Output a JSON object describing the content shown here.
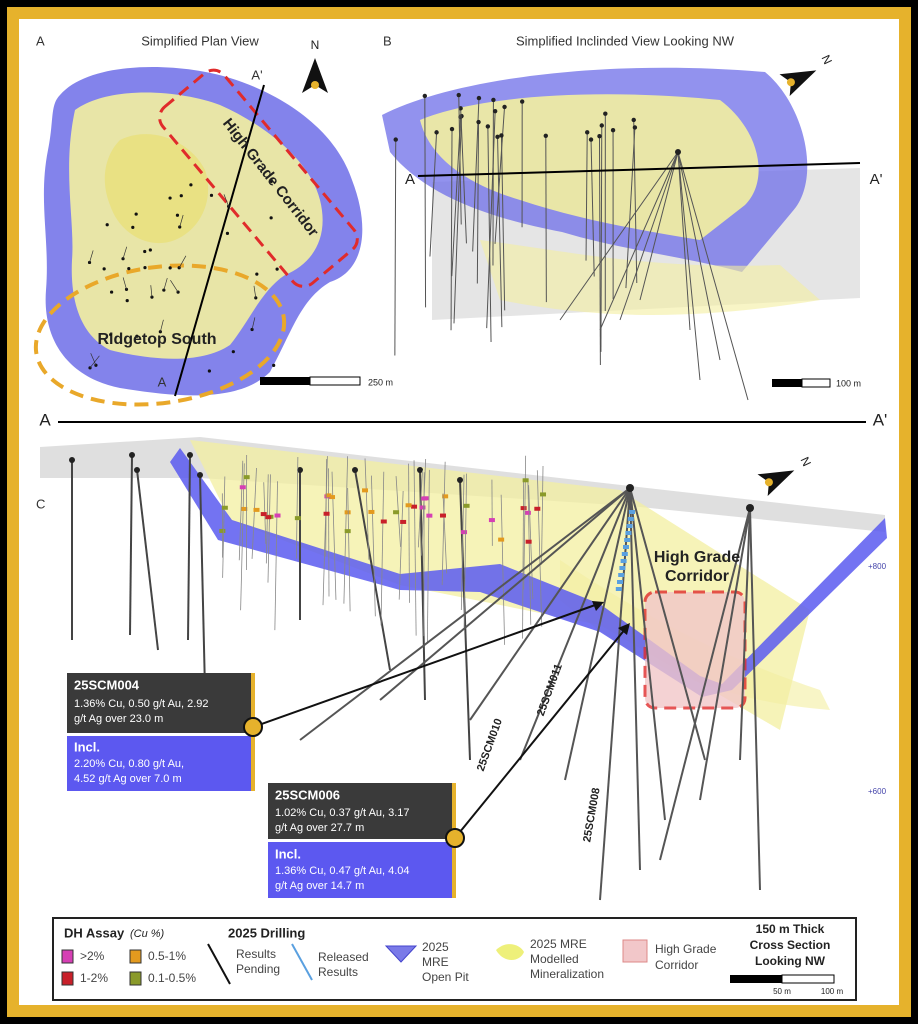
{
  "panel_a": {
    "label": "A",
    "title": "Simplified Plan View",
    "north": "N",
    "section_end": "A'",
    "section_start": "A",
    "corridor": "High Grade Corridor",
    "zone": "Ridgetop South",
    "scale": "250 m"
  },
  "panel_b": {
    "label": "B",
    "title": "Simplified Inclinded View Looking NW",
    "north": "N",
    "section_start": "A",
    "section_end": "A'",
    "scale": "100 m"
  },
  "section_line": {
    "start": "A",
    "end": "A'"
  },
  "panel_c": {
    "label": "C",
    "north": "N",
    "corridor": [
      "High Grade",
      "Corridor"
    ],
    "elevations": [
      "+800",
      "+600"
    ],
    "holes": [
      "25SCM010",
      "25SCM011",
      "25SCM008"
    ],
    "callouts": [
      {
        "hole": "25SCM004",
        "result": [
          "1.36% Cu, 0.50 g/t Au, 2.92",
          "g/t Ag over 23.0 m"
        ],
        "incl_label": "Incl.",
        "incl": [
          "2.20% Cu, 0.80 g/t Au,",
          "4.52 g/t Ag over 7.0 m"
        ]
      },
      {
        "hole": "25SCM006",
        "result": [
          "1.02% Cu, 0.37 g/t Au, 3.17",
          "g/t Ag over 27.7 m"
        ],
        "incl_label": "Incl.",
        "incl": [
          "1.36% Cu, 0.47 g/t Au, 4.04",
          "g/t Ag over 14.7 m"
        ]
      }
    ]
  },
  "legend": {
    "assay_title": "DH Assay",
    "assay_unit": "(Cu %)",
    "assay_classes": [
      {
        "label": ">2%",
        "color": "#d63fb4"
      },
      {
        "label": "0.5-1%",
        "color": "#e39a1e"
      },
      {
        "label": "1-2%",
        "color": "#c8202a"
      },
      {
        "label": "0.1-0.5%",
        "color": "#8a9a2a"
      }
    ],
    "drilling_title": "2025 Drilling",
    "pending": [
      "Results",
      "Pending"
    ],
    "released": [
      "Released",
      "Results"
    ],
    "pit": [
      "2025",
      "MRE",
      "Open Pit"
    ],
    "mineralization": [
      "2025 MRE",
      "Modelled",
      "Mineralization"
    ],
    "corridor": [
      "High Grade",
      "Corridor"
    ],
    "section_note": [
      "150 m Thick",
      "Cross Section",
      "Looking NW"
    ],
    "scale": [
      "50 m",
      "100 m"
    ]
  }
}
